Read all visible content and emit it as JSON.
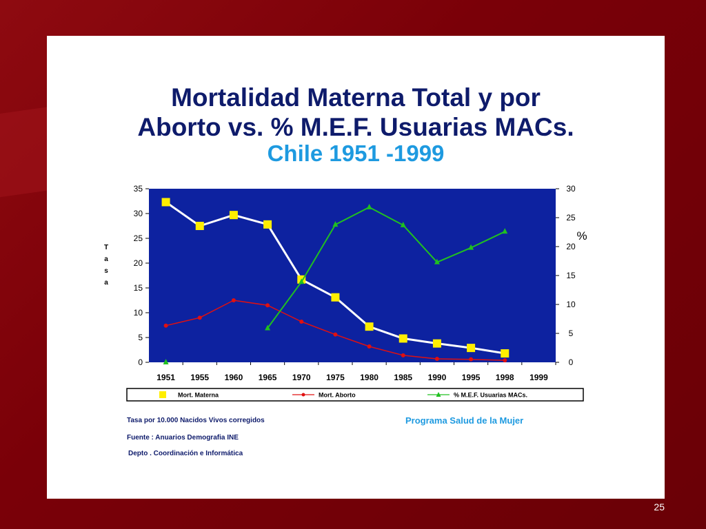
{
  "title_line1": "Mortalidad Materna Total y por",
  "title_line2": "Aborto vs. % M.E.F. Usuarias MACs.",
  "subtitle": "Chile 1951 -1999",
  "footnotes": {
    "tasa_note": "Tasa por 10.000 Nacidos Vivos corregidos",
    "source": "Fuente : Anuarios Demografia INE",
    "dept": "Depto . Coordinación e Informática",
    "program": "Programa Salud de la Mujer"
  },
  "slide_number": "25",
  "colors": {
    "plot_bg": "#0d22a0",
    "materna": "#ffffff",
    "materna_marker": "#ffee00",
    "aborto": "#e01010",
    "mef": "#20c020",
    "text": "#000000"
  },
  "chart_data": {
    "type": "line",
    "title": "Mortalidad Materna Total y por Aborto vs. % M.E.F. Usuarias MACs. Chile 1951 -1999",
    "categories": [
      "1951",
      "1955",
      "1960",
      "1965",
      "1970",
      "1975",
      "1980",
      "1985",
      "1990",
      "1995",
      "1998",
      "1999"
    ],
    "ylabel_left": "Tasa",
    "ylabel_left_letters": [
      "T",
      "a",
      "s",
      "a"
    ],
    "ylabel_right": "%",
    "ylim_left": [
      0,
      35
    ],
    "yticks_left": [
      "0",
      "5",
      "10",
      "15",
      "20",
      "25",
      "30",
      "35"
    ],
    "ylim_right": [
      0,
      30
    ],
    "yticks_right": [
      "0",
      "5",
      "10",
      "15",
      "20",
      "25",
      "30"
    ],
    "grid": false,
    "legend_position": "bottom",
    "series": [
      {
        "name": "Mort. Materna",
        "axis": "left",
        "marker": "square",
        "values": [
          32.3,
          27.5,
          29.7,
          27.8,
          16.7,
          13.1,
          7.2,
          4.8,
          3.8,
          2.9,
          1.8,
          null
        ]
      },
      {
        "name": "Mort. Aborto",
        "axis": "left",
        "marker": "dot",
        "values": [
          7.4,
          9.0,
          12.5,
          11.5,
          8.2,
          5.6,
          3.2,
          1.4,
          0.7,
          0.6,
          0.4,
          null
        ]
      },
      {
        "name": "% M.E.F. Usuarias MACs.",
        "axis": "right",
        "marker": "triangle",
        "values": [
          0,
          null,
          null,
          5.9,
          13.9,
          23.8,
          26.8,
          23.7,
          17.3,
          19.8,
          22.6,
          null
        ]
      }
    ]
  }
}
